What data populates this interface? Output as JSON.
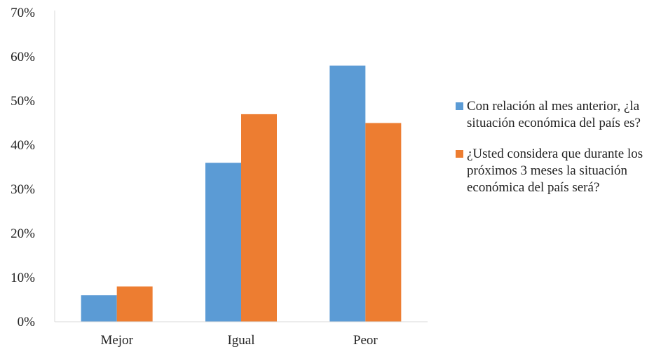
{
  "chart_data": {
    "type": "bar",
    "categories": [
      "Mejor",
      "Igual",
      "Peor"
    ],
    "series": [
      {
        "name": "Con relación al mes anterior, ¿la situación económica del país es?",
        "values": [
          6,
          36,
          58
        ],
        "color": "#5b9bd5"
      },
      {
        "name": "¿Usted considera que durante los próximos 3 meses la situación económica del país será?",
        "values": [
          8,
          47,
          45
        ],
        "color": "#ed7d31"
      }
    ],
    "yticks": [
      "0%",
      "10%",
      "20%",
      "30%",
      "40%",
      "50%",
      "60%",
      "70%"
    ],
    "ylim": [
      0,
      70
    ],
    "title": "",
    "xlabel": "",
    "ylabel": "",
    "grid": false,
    "legend_position": "right"
  }
}
